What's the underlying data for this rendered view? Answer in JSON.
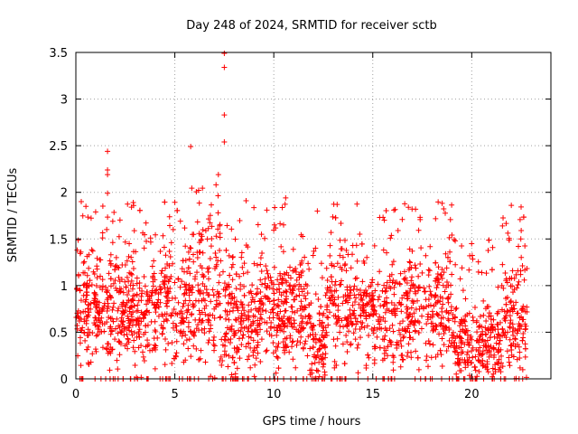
{
  "chart_data": {
    "type": "scatter",
    "title": "Day 248 of 2024, SRMTID for receiver sctb",
    "xlabel": "GPS time / hours",
    "ylabel": "SRMTID / TECUs",
    "xlim": [
      0,
      24.0
    ],
    "ylim": [
      0,
      3.5
    ],
    "xticks": [
      0,
      5,
      10,
      15,
      20
    ],
    "xtick_labels": [
      "0",
      "5",
      "10",
      "15",
      "20"
    ],
    "yticks": [
      0,
      0.5,
      1,
      1.5,
      2,
      2.5,
      3,
      3.5
    ],
    "ytick_labels": [
      "0",
      "0.5",
      "1",
      "1.5",
      "2",
      "2.5",
      "3",
      "3.5"
    ],
    "grid": true,
    "marker": "+",
    "color": "#ff0000",
    "data_x_range": [
      0,
      22.8
    ],
    "highlighted_points": [
      {
        "x": 7.5,
        "y": 3.49
      },
      {
        "x": 7.5,
        "y": 3.34
      },
      {
        "x": 7.5,
        "y": 2.83
      },
      {
        "x": 7.5,
        "y": 2.54
      },
      {
        "x": 5.8,
        "y": 2.49
      },
      {
        "x": 1.6,
        "y": 2.44
      },
      {
        "x": 1.6,
        "y": 2.24
      },
      {
        "x": 1.6,
        "y": 2.19
      },
      {
        "x": 7.2,
        "y": 2.19
      },
      {
        "x": 1.6,
        "y": 1.99
      },
      {
        "x": 10.6,
        "y": 1.94
      },
      {
        "x": 8.6,
        "y": 1.91
      },
      {
        "x": 2.9,
        "y": 1.89
      },
      {
        "x": 13.2,
        "y": 1.87
      },
      {
        "x": 22.0,
        "y": 1.86
      },
      {
        "x": 16.8,
        "y": 1.84
      },
      {
        "x": 12.2,
        "y": 1.8
      },
      {
        "x": 1.0,
        "y": 1.79
      },
      {
        "x": 22.5,
        "y": 1.59
      },
      {
        "x": 19.9,
        "y": 1.32
      }
    ]
  }
}
